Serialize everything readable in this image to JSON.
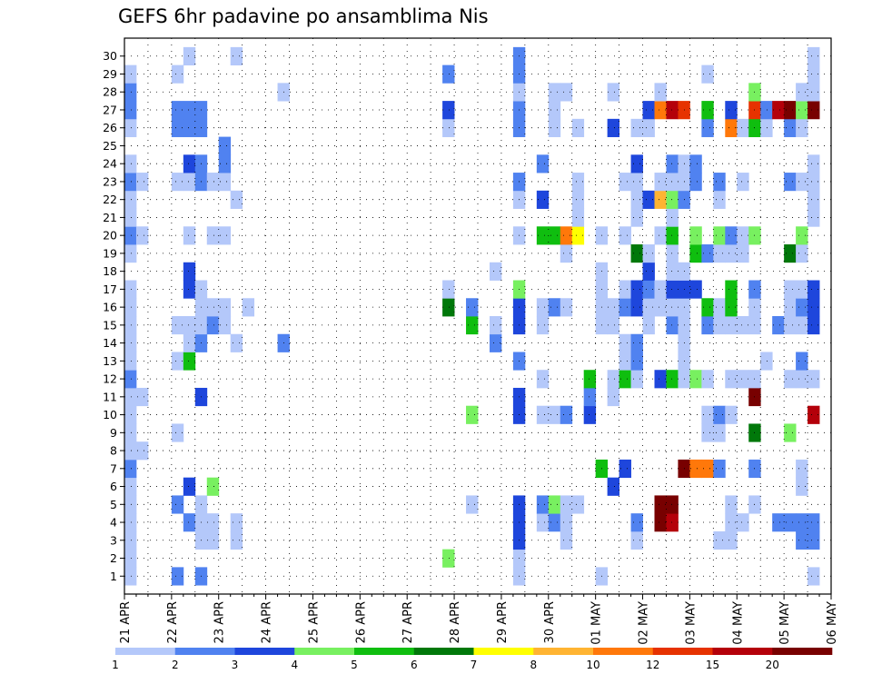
{
  "chart_data": {
    "type": "heatmap",
    "title": "GEFS 6hr padavine po ansamblima Nis",
    "x_tick_labels": [
      "21 APR",
      "22 APR",
      "23 APR",
      "24 APR",
      "25 APR",
      "26 APR",
      "27 APR",
      "28 APR",
      "29 APR",
      "30 APR",
      "01 MAY",
      "02 MAY",
      "03 MAY",
      "04 MAY",
      "05 MAY",
      "06 MAY"
    ],
    "y_tick_labels": [
      "1",
      "2",
      "3",
      "4",
      "5",
      "6",
      "7",
      "8",
      "9",
      "10",
      "11",
      "12",
      "13",
      "14",
      "15",
      "16",
      "17",
      "18",
      "19",
      "20",
      "21",
      "22",
      "23",
      "24",
      "25",
      "26",
      "27",
      "28",
      "29",
      "30"
    ],
    "x_steps_per_day": 4,
    "x_total_steps": 60,
    "y_members": 30,
    "grid": true,
    "legend": "bottom",
    "colorbar": {
      "levels": [
        "1",
        "2",
        "3",
        "4",
        "5",
        "6",
        "7",
        "8",
        "10",
        "12",
        "15",
        "20"
      ],
      "colors": [
        "#b4c8fa",
        "#5082f0",
        "#1e46dc",
        "#78f060",
        "#0fbe0f",
        "#00780a",
        "#ffff00",
        "#ffb432",
        "#ff780a",
        "#e63200",
        "#b4000a",
        "#780000"
      ]
    },
    "cells": [
      [
        1,
        1,
        1
      ],
      [
        2,
        1,
        1
      ],
      [
        3,
        1,
        1
      ],
      [
        4,
        1,
        1
      ],
      [
        5,
        1,
        1
      ],
      [
        6,
        1,
        1
      ],
      [
        7,
        1,
        2
      ],
      [
        8,
        1,
        1
      ],
      [
        9,
        1,
        1
      ],
      [
        10,
        1,
        1
      ],
      [
        11,
        1,
        1
      ],
      [
        12,
        1,
        2
      ],
      [
        13,
        1,
        1
      ],
      [
        14,
        1,
        1
      ],
      [
        15,
        1,
        1
      ],
      [
        16,
        1,
        1
      ],
      [
        17,
        1,
        1
      ],
      [
        19,
        1,
        1
      ],
      [
        20,
        1,
        2
      ],
      [
        21,
        1,
        1
      ],
      [
        22,
        1,
        1
      ],
      [
        23,
        1,
        2
      ],
      [
        24,
        1,
        1
      ],
      [
        26,
        1,
        1
      ],
      [
        27,
        1,
        2
      ],
      [
        28,
        1,
        2
      ],
      [
        29,
        1,
        1
      ],
      [
        8,
        2,
        1
      ],
      [
        11,
        2,
        1
      ],
      [
        20,
        2,
        1
      ],
      [
        23,
        2,
        1
      ],
      [
        1,
        5,
        2
      ],
      [
        5,
        5,
        2
      ],
      [
        9,
        5,
        1
      ],
      [
        13,
        5,
        1
      ],
      [
        15,
        5,
        1
      ],
      [
        23,
        5,
        1
      ],
      [
        26,
        5,
        2
      ],
      [
        27,
        5,
        2
      ],
      [
        29,
        5,
        1
      ],
      [
        4,
        6,
        2
      ],
      [
        6,
        6,
        3
      ],
      [
        13,
        6,
        5
      ],
      [
        14,
        6,
        1
      ],
      [
        15,
        6,
        1
      ],
      [
        17,
        6,
        3
      ],
      [
        18,
        6,
        3
      ],
      [
        20,
        6,
        1
      ],
      [
        23,
        6,
        1
      ],
      [
        24,
        6,
        3
      ],
      [
        26,
        6,
        2
      ],
      [
        27,
        6,
        2
      ],
      [
        30,
        6,
        1
      ],
      [
        1,
        7,
        2
      ],
      [
        3,
        7,
        1
      ],
      [
        4,
        7,
        1
      ],
      [
        5,
        7,
        1
      ],
      [
        11,
        7,
        3
      ],
      [
        14,
        7,
        2
      ],
      [
        15,
        7,
        1
      ],
      [
        16,
        7,
        1
      ],
      [
        17,
        7,
        1
      ],
      [
        23,
        7,
        2
      ],
      [
        24,
        7,
        2
      ],
      [
        26,
        7,
        2
      ],
      [
        27,
        7,
        2
      ],
      [
        3,
        8,
        1
      ],
      [
        4,
        8,
        1
      ],
      [
        6,
        8,
        4
      ],
      [
        15,
        8,
        2
      ],
      [
        16,
        8,
        1
      ],
      [
        20,
        8,
        1
      ],
      [
        23,
        8,
        1
      ],
      [
        15,
        9,
        1
      ],
      [
        16,
        9,
        1
      ],
      [
        20,
        9,
        1
      ],
      [
        23,
        9,
        1
      ],
      [
        24,
        9,
        2
      ],
      [
        25,
        9,
        2
      ],
      [
        3,
        10,
        1
      ],
      [
        4,
        10,
        1
      ],
      [
        14,
        10,
        1
      ],
      [
        22,
        10,
        1
      ],
      [
        30,
        10,
        1
      ],
      [
        16,
        11,
        1
      ],
      [
        14,
        14,
        2
      ],
      [
        28,
        14,
        1
      ],
      [
        2,
        28,
        4
      ],
      [
        16,
        28,
        6
      ],
      [
        17,
        28,
        1
      ],
      [
        26,
        28,
        1
      ],
      [
        27,
        28,
        3
      ],
      [
        29,
        28,
        2
      ],
      [
        5,
        30,
        1
      ],
      [
        10,
        30,
        4
      ],
      [
        15,
        30,
        5
      ],
      [
        16,
        30,
        2
      ],
      [
        14,
        32,
        2
      ],
      [
        15,
        32,
        1
      ],
      [
        18,
        32,
        1
      ],
      [
        1,
        34,
        1
      ],
      [
        2,
        34,
        1
      ],
      [
        3,
        34,
        3
      ],
      [
        4,
        34,
        3
      ],
      [
        5,
        34,
        3
      ],
      [
        10,
        34,
        3
      ],
      [
        11,
        34,
        3
      ],
      [
        13,
        34,
        2
      ],
      [
        15,
        34,
        3
      ],
      [
        16,
        34,
        3
      ],
      [
        17,
        34,
        4
      ],
      [
        20,
        34,
        1
      ],
      [
        22,
        34,
        1
      ],
      [
        23,
        34,
        2
      ],
      [
        26,
        34,
        2
      ],
      [
        27,
        34,
        2
      ],
      [
        28,
        34,
        1
      ],
      [
        29,
        34,
        2
      ],
      [
        30,
        34,
        2
      ],
      [
        4,
        36,
        1
      ],
      [
        5,
        36,
        2
      ],
      [
        10,
        36,
        1
      ],
      [
        12,
        36,
        1
      ],
      [
        15,
        36,
        1
      ],
      [
        16,
        36,
        1
      ],
      [
        20,
        36,
        5
      ],
      [
        22,
        36,
        3
      ],
      [
        24,
        36,
        2
      ],
      [
        4,
        37,
        2
      ],
      [
        5,
        37,
        4
      ],
      [
        10,
        37,
        1
      ],
      [
        16,
        37,
        2
      ],
      [
        20,
        37,
        5
      ],
      [
        26,
        37,
        1
      ],
      [
        27,
        37,
        1
      ],
      [
        28,
        37,
        1
      ],
      [
        3,
        38,
        1
      ],
      [
        4,
        38,
        1
      ],
      [
        5,
        38,
        1
      ],
      [
        10,
        38,
        2
      ],
      [
        16,
        38,
        1
      ],
      [
        19,
        38,
        1
      ],
      [
        20,
        38,
        9
      ],
      [
        28,
        38,
        1
      ],
      [
        5,
        39,
        1
      ],
      [
        20,
        39,
        7
      ],
      [
        21,
        39,
        1
      ],
      [
        22,
        39,
        1
      ],
      [
        23,
        39,
        1
      ],
      [
        26,
        39,
        1
      ],
      [
        10,
        40,
        3
      ],
      [
        11,
        40,
        2
      ],
      [
        12,
        40,
        5
      ],
      [
        1,
        41,
        1
      ],
      [
        7,
        41,
        5
      ],
      [
        15,
        41,
        1
      ],
      [
        16,
        41,
        1
      ],
      [
        17,
        41,
        1
      ],
      [
        18,
        41,
        1
      ],
      [
        20,
        41,
        1
      ],
      [
        6,
        42,
        3
      ],
      [
        11,
        42,
        1
      ],
      [
        12,
        42,
        1
      ],
      [
        15,
        42,
        1
      ],
      [
        16,
        42,
        1
      ],
      [
        26,
        42,
        3
      ],
      [
        28,
        42,
        1
      ],
      [
        7,
        43,
        3
      ],
      [
        12,
        43,
        5
      ],
      [
        13,
        43,
        1
      ],
      [
        14,
        43,
        1
      ],
      [
        16,
        43,
        2
      ],
      [
        17,
        43,
        1
      ],
      [
        20,
        43,
        1
      ],
      [
        23,
        43,
        1
      ],
      [
        3,
        44,
        1
      ],
      [
        4,
        44,
        2
      ],
      [
        12,
        44,
        1
      ],
      [
        13,
        44,
        2
      ],
      [
        14,
        44,
        2
      ],
      [
        16,
        44,
        3
      ],
      [
        17,
        44,
        3
      ],
      [
        19,
        44,
        6
      ],
      [
        21,
        44,
        1
      ],
      [
        22,
        44,
        1
      ],
      [
        23,
        44,
        1
      ],
      [
        24,
        44,
        3
      ],
      [
        26,
        44,
        1
      ],
      [
        15,
        45,
        1
      ],
      [
        16,
        45,
        1
      ],
      [
        17,
        45,
        2
      ],
      [
        18,
        45,
        3
      ],
      [
        19,
        45,
        1
      ],
      [
        22,
        45,
        3
      ],
      [
        26,
        45,
        1
      ],
      [
        27,
        45,
        3
      ],
      [
        4,
        46,
        12
      ],
      [
        5,
        46,
        12
      ],
      [
        12,
        46,
        3
      ],
      [
        16,
        46,
        1
      ],
      [
        17,
        46,
        1
      ],
      [
        20,
        46,
        1
      ],
      [
        22,
        46,
        8
      ],
      [
        23,
        46,
        1
      ],
      [
        27,
        46,
        9
      ],
      [
        28,
        46,
        1
      ],
      [
        4,
        47,
        11
      ],
      [
        5,
        47,
        12
      ],
      [
        12,
        47,
        5
      ],
      [
        15,
        47,
        2
      ],
      [
        16,
        47,
        1
      ],
      [
        17,
        47,
        3
      ],
      [
        18,
        47,
        1
      ],
      [
        19,
        47,
        1
      ],
      [
        20,
        47,
        5
      ],
      [
        21,
        47,
        1
      ],
      [
        22,
        47,
        4
      ],
      [
        23,
        47,
        1
      ],
      [
        24,
        47,
        2
      ],
      [
        27,
        47,
        11
      ],
      [
        7,
        48,
        12
      ],
      [
        12,
        48,
        1
      ],
      [
        13,
        48,
        1
      ],
      [
        14,
        48,
        1
      ],
      [
        15,
        48,
        1
      ],
      [
        16,
        48,
        1
      ],
      [
        17,
        48,
        3
      ],
      [
        18,
        48,
        1
      ],
      [
        22,
        48,
        2
      ],
      [
        23,
        48,
        1
      ],
      [
        24,
        48,
        1
      ],
      [
        27,
        48,
        10
      ],
      [
        7,
        49,
        9
      ],
      [
        12,
        49,
        4
      ],
      [
        17,
        49,
        3
      ],
      [
        19,
        49,
        5
      ],
      [
        20,
        49,
        4
      ],
      [
        23,
        49,
        2
      ],
      [
        24,
        49,
        2
      ],
      [
        7,
        50,
        9
      ],
      [
        9,
        50,
        1
      ],
      [
        10,
        50,
        1
      ],
      [
        12,
        50,
        1
      ],
      [
        15,
        50,
        2
      ],
      [
        16,
        50,
        5
      ],
      [
        19,
        50,
        2
      ],
      [
        26,
        50,
        2
      ],
      [
        27,
        50,
        5
      ],
      [
        29,
        50,
        1
      ],
      [
        3,
        51,
        1
      ],
      [
        7,
        51,
        2
      ],
      [
        9,
        51,
        1
      ],
      [
        10,
        51,
        2
      ],
      [
        15,
        51,
        1
      ],
      [
        16,
        51,
        1
      ],
      [
        19,
        51,
        1
      ],
      [
        20,
        51,
        4
      ],
      [
        22,
        51,
        1
      ],
      [
        23,
        51,
        2
      ],
      [
        3,
        52,
        1
      ],
      [
        4,
        52,
        1
      ],
      [
        5,
        52,
        1
      ],
      [
        10,
        52,
        1
      ],
      [
        12,
        52,
        1
      ],
      [
        15,
        52,
        1
      ],
      [
        16,
        52,
        5
      ],
      [
        17,
        52,
        5
      ],
      [
        19,
        52,
        1
      ],
      [
        20,
        52,
        2
      ],
      [
        26,
        52,
        9
      ],
      [
        27,
        52,
        3
      ],
      [
        4,
        53,
        1
      ],
      [
        12,
        53,
        1
      ],
      [
        15,
        53,
        1
      ],
      [
        19,
        53,
        1
      ],
      [
        20,
        53,
        1
      ],
      [
        23,
        53,
        1
      ],
      [
        26,
        53,
        1
      ],
      [
        5,
        54,
        1
      ],
      [
        7,
        54,
        2
      ],
      [
        9,
        54,
        6
      ],
      [
        11,
        54,
        12
      ],
      [
        12,
        54,
        1
      ],
      [
        15,
        54,
        1
      ],
      [
        16,
        54,
        1
      ],
      [
        17,
        54,
        2
      ],
      [
        20,
        54,
        4
      ],
      [
        26,
        54,
        5
      ],
      [
        27,
        54,
        10
      ],
      [
        28,
        54,
        4
      ],
      [
        13,
        55,
        1
      ],
      [
        26,
        55,
        1
      ],
      [
        27,
        55,
        2
      ],
      [
        4,
        56,
        2
      ],
      [
        15,
        56,
        2
      ],
      [
        27,
        56,
        11
      ],
      [
        4,
        57,
        2
      ],
      [
        9,
        57,
        4
      ],
      [
        12,
        57,
        1
      ],
      [
        15,
        57,
        1
      ],
      [
        16,
        57,
        1
      ],
      [
        17,
        57,
        1
      ],
      [
        19,
        57,
        6
      ],
      [
        23,
        57,
        2
      ],
      [
        26,
        57,
        2
      ],
      [
        27,
        57,
        12
      ],
      [
        3,
        58,
        2
      ],
      [
        4,
        58,
        2
      ],
      [
        6,
        58,
        1
      ],
      [
        7,
        58,
        1
      ],
      [
        12,
        58,
        1
      ],
      [
        13,
        58,
        2
      ],
      [
        15,
        58,
        1
      ],
      [
        16,
        58,
        2
      ],
      [
        17,
        58,
        1
      ],
      [
        19,
        58,
        1
      ],
      [
        20,
        58,
        4
      ],
      [
        23,
        58,
        1
      ],
      [
        26,
        58,
        1
      ],
      [
        27,
        58,
        4
      ],
      [
        28,
        58,
        1
      ],
      [
        1,
        59,
        1
      ],
      [
        3,
        59,
        2
      ],
      [
        4,
        59,
        2
      ],
      [
        10,
        59,
        11
      ],
      [
        12,
        59,
        1
      ],
      [
        15,
        59,
        3
      ],
      [
        16,
        59,
        3
      ],
      [
        17,
        59,
        3
      ],
      [
        21,
        59,
        1
      ],
      [
        22,
        59,
        1
      ],
      [
        23,
        59,
        1
      ],
      [
        24,
        59,
        1
      ],
      [
        27,
        59,
        12
      ],
      [
        28,
        59,
        1
      ],
      [
        29,
        59,
        1
      ],
      [
        30,
        59,
        1
      ]
    ]
  }
}
